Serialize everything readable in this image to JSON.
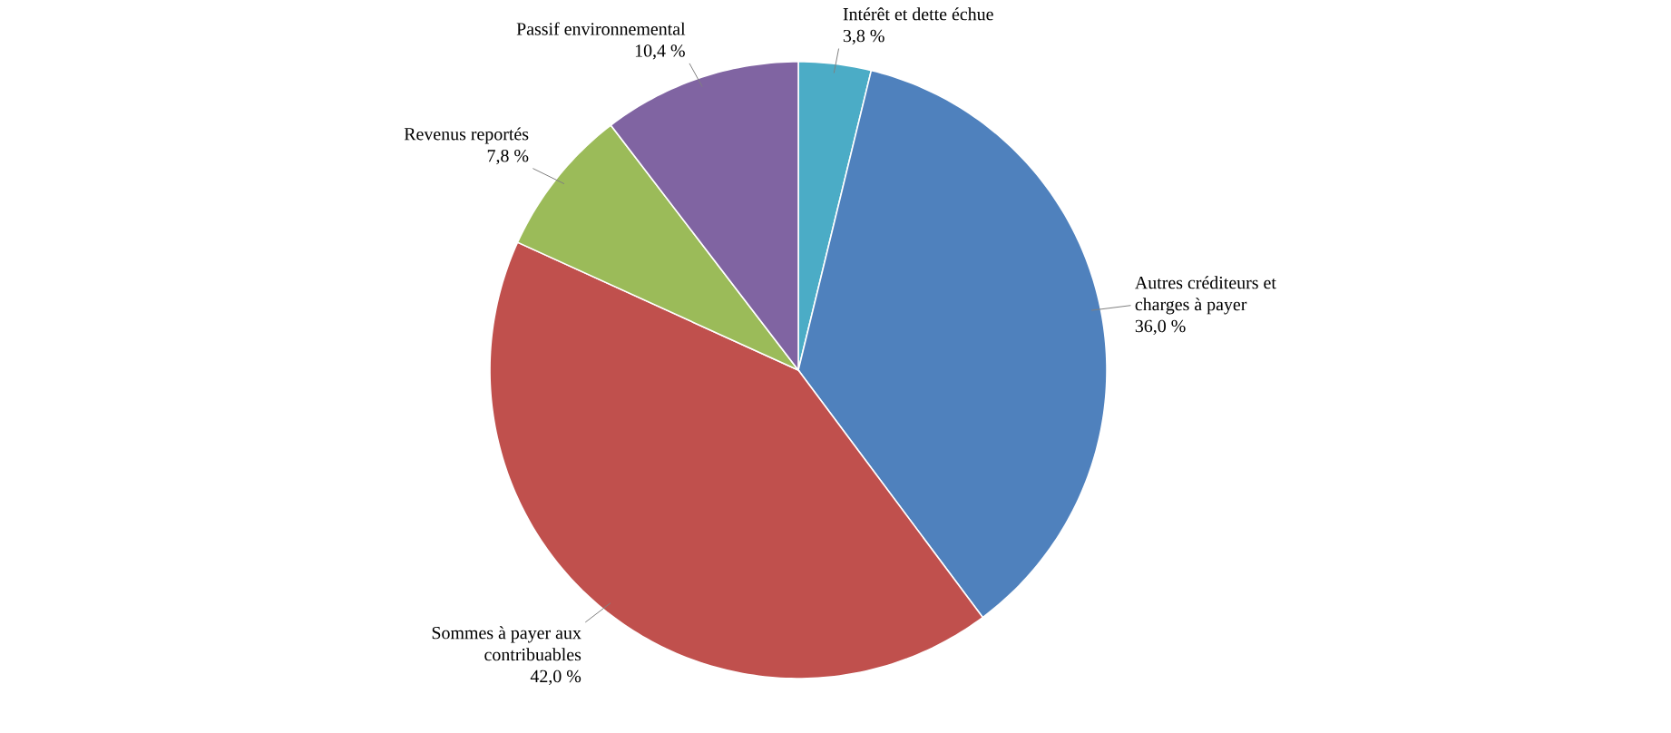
{
  "chart_data": {
    "type": "pie",
    "categories": [
      "Intérêt et dette échue",
      "Autres créditeurs et charges à payer",
      "Sommes à payer aux contribuables",
      "Revenus reportés",
      "Passif environnemental"
    ],
    "values": [
      3.8,
      36.0,
      42.0,
      7.8,
      10.4
    ],
    "colors": [
      "#4bacc6",
      "#4f81bd",
      "#c0504d",
      "#9bbb59",
      "#8064a2"
    ],
    "value_labels": [
      "3,8 %",
      "36,0 %",
      "42,0 %",
      "7,8 %",
      "10,4 %"
    ]
  }
}
